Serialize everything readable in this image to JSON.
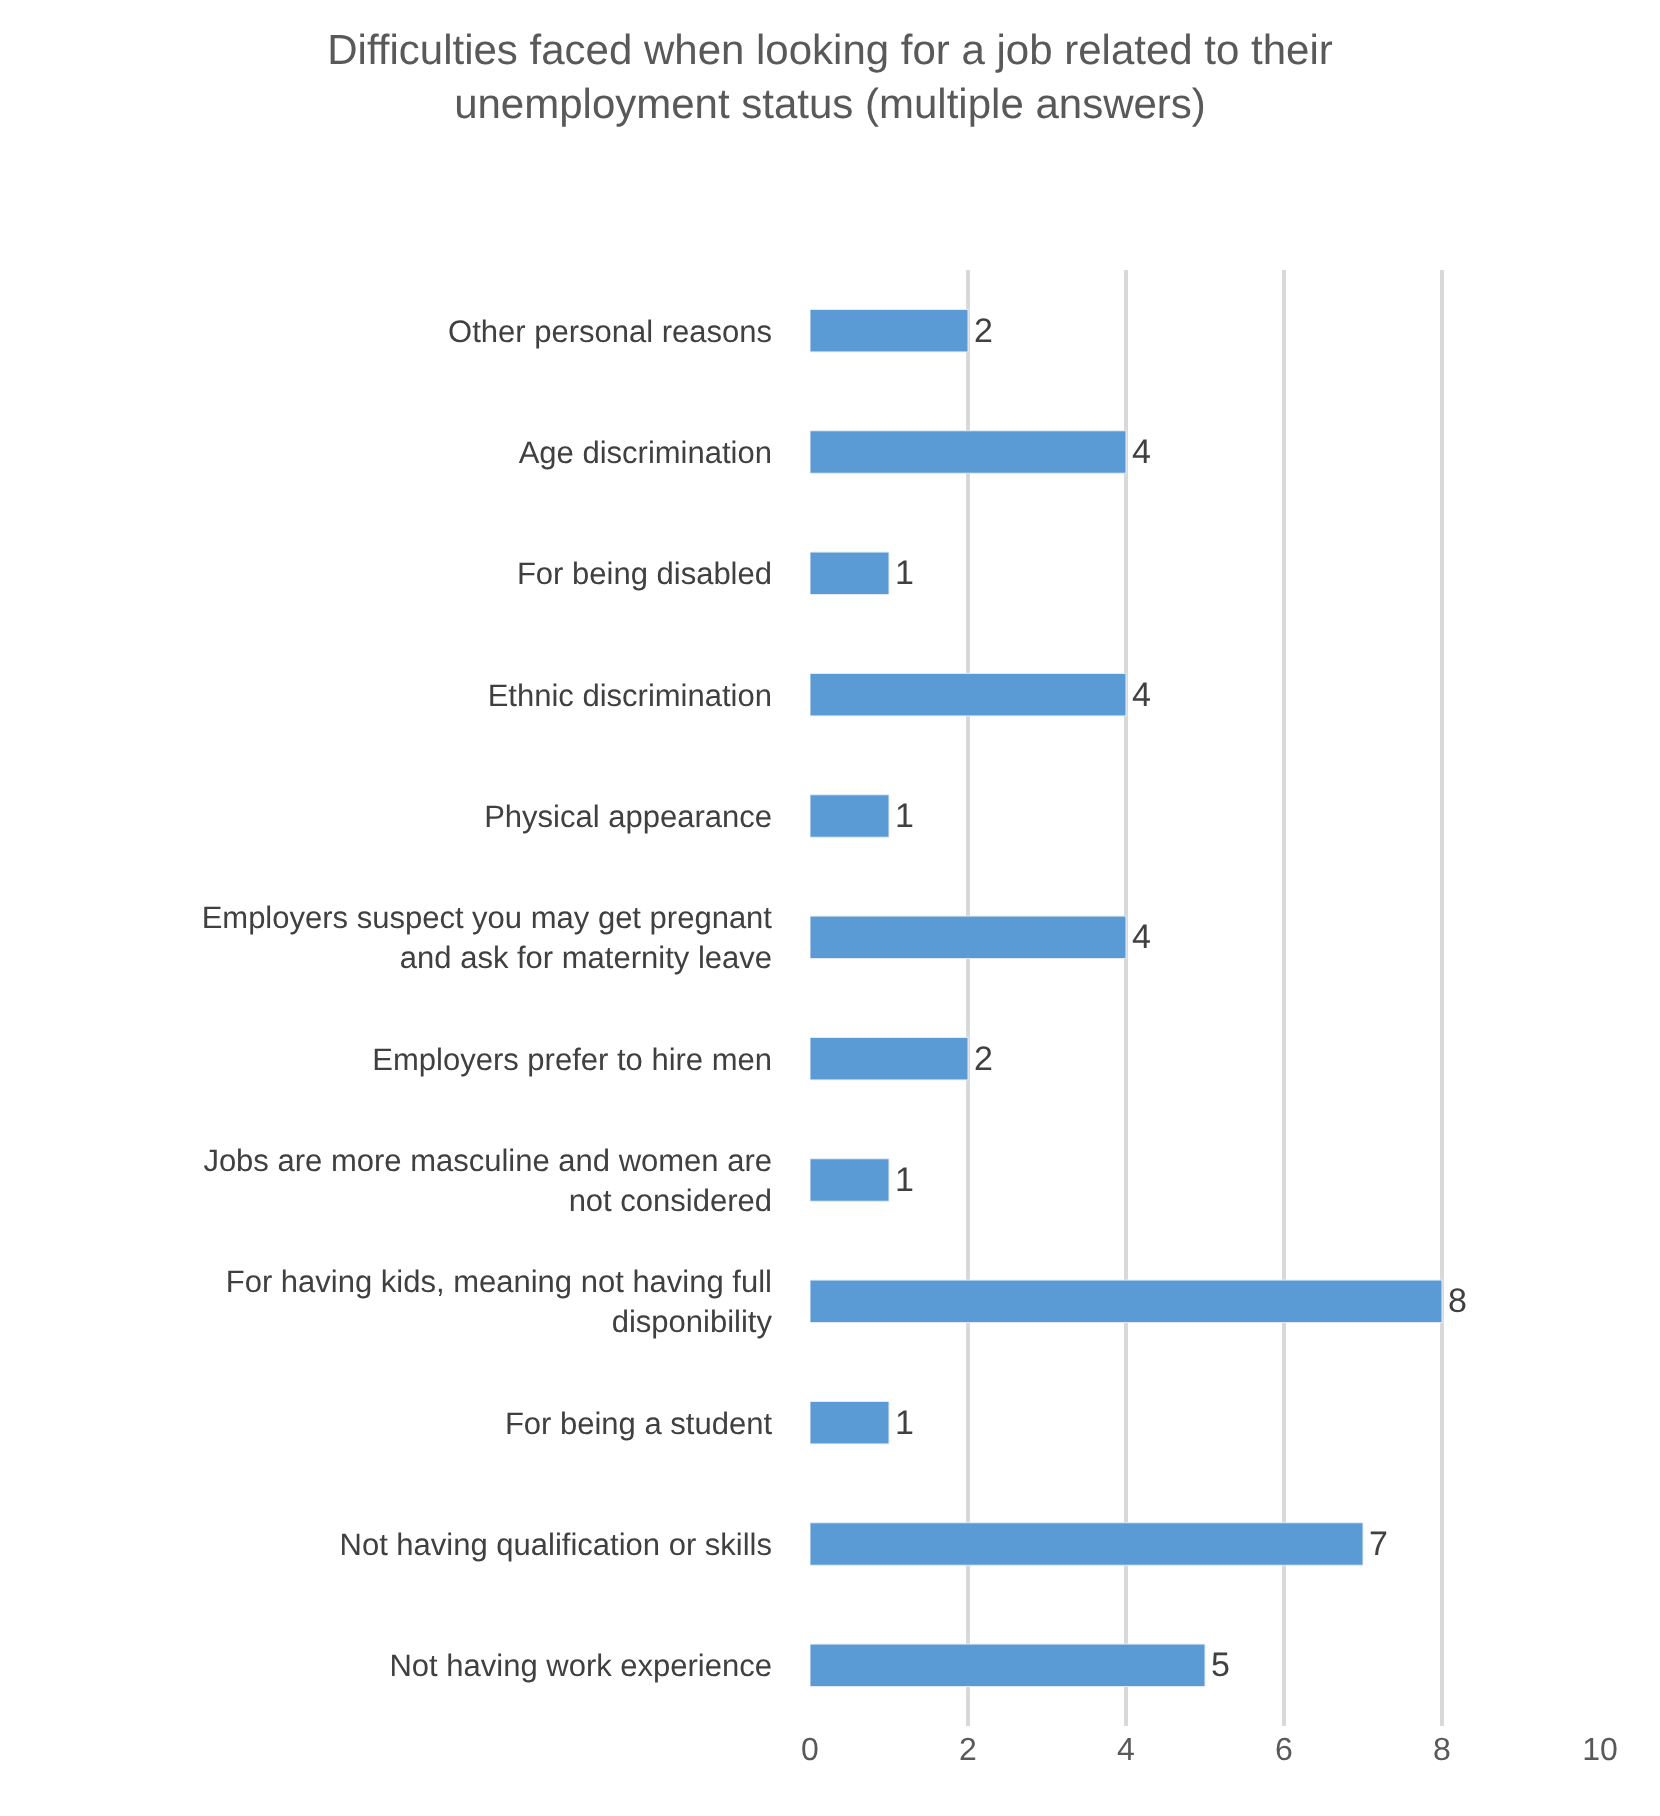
{
  "chart_data": {
    "type": "bar",
    "orientation": "horizontal",
    "title": "Difficulties faced when looking for a job related to their unemployment status (multiple answers)",
    "categories": [
      "Other personal reasons",
      "Age discrimination",
      "For being disabled",
      "Ethnic discrimination",
      "Physical appearance",
      "Employers suspect you may get pregnant and ask for maternity leave",
      "Employers prefer to hire men",
      "Jobs are more masculine and women are not considered",
      "For having kids, meaning not having full disponibility",
      "For being a student",
      "Not having qualification or skills",
      "Not having work experience"
    ],
    "values": [
      2,
      4,
      1,
      4,
      1,
      4,
      2,
      1,
      8,
      1,
      7,
      5
    ],
    "color": "#5b9bd5",
    "xlim": [
      0,
      10
    ],
    "xticks": [
      0,
      2,
      4,
      6,
      8,
      10
    ],
    "grid": "x",
    "data_labels": true,
    "legend": false
  }
}
